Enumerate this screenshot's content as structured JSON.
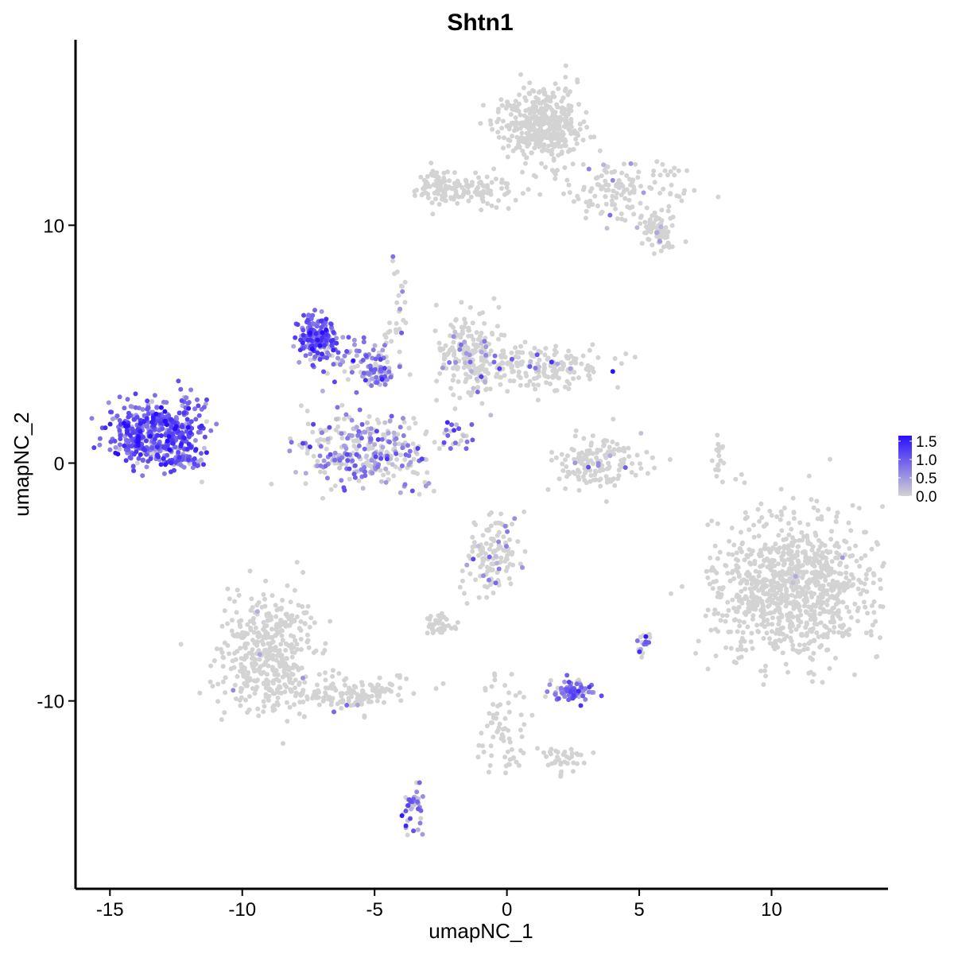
{
  "chart_data": {
    "type": "scatter",
    "title": "Shtn1",
    "xlabel": "umapNC_1",
    "ylabel": "umapNC_2",
    "xlim": [
      -16.3,
      14.4
    ],
    "ylim": [
      -17.9,
      17.8
    ],
    "x_ticks": [
      -15,
      -10,
      -5,
      0,
      5,
      10
    ],
    "x_tick_labels": [
      "-15",
      "-10",
      "-5",
      "0",
      "5",
      "10"
    ],
    "y_ticks": [
      -10,
      0,
      10
    ],
    "y_tick_labels": [
      "-10",
      "0",
      "10"
    ],
    "grid": false,
    "legend": {
      "placement": "right",
      "type": "colorbar",
      "min": 0.0,
      "max": 1.65,
      "labels": [
        "1.5",
        "1.0",
        "0.5",
        "0.0"
      ],
      "label_values": [
        1.5,
        1.0,
        0.5,
        0.0
      ],
      "low_color": "#d3d3d3",
      "high_color": "#2a0fff"
    },
    "clusters": [
      {
        "id": "c1",
        "cx": -13.2,
        "cy": 1.2,
        "sx": 0.85,
        "sy": 0.65,
        "n": 480,
        "expr_mean": 1.0,
        "expr_frac": 0.95
      },
      {
        "id": "c1b",
        "cx": -12.1,
        "cy": 0.1,
        "sx": 0.25,
        "sy": 0.15,
        "n": 25,
        "expr_mean": 0.8,
        "expr_frac": 0.9
      },
      {
        "id": "c1c",
        "cx": -12.0,
        "cy": 2.2,
        "sx": 0.4,
        "sy": 0.3,
        "n": 20,
        "expr_mean": 0.8,
        "expr_frac": 0.9
      },
      {
        "id": "c2",
        "cx": -7.2,
        "cy": 5.3,
        "sx": 0.35,
        "sy": 0.45,
        "n": 160,
        "expr_mean": 1.0,
        "expr_frac": 0.95
      },
      {
        "id": "c2b",
        "cx": -5.9,
        "cy": 4.5,
        "sx": 0.9,
        "sy": 0.45,
        "n": 80,
        "expr_mean": 0.7,
        "expr_frac": 0.75
      },
      {
        "id": "c3",
        "cx": -4.9,
        "cy": 3.7,
        "sx": 0.3,
        "sy": 0.25,
        "n": 55,
        "expr_mean": 0.7,
        "expr_frac": 0.85
      },
      {
        "id": "c4",
        "cx": -5.4,
        "cy": 0.5,
        "sx": 1.2,
        "sy": 0.75,
        "n": 320,
        "expr_mean": 0.6,
        "expr_frac": 0.55
      },
      {
        "id": "c5",
        "cx": -1.3,
        "cy": 4.5,
        "sx": 0.6,
        "sy": 0.9,
        "n": 210,
        "expr_mean": 0.5,
        "expr_frac": 0.12
      },
      {
        "id": "c5b",
        "cx": 1.3,
        "cy": 4.1,
        "sx": 1.2,
        "sy": 0.45,
        "n": 170,
        "expr_mean": 0.5,
        "expr_frac": 0.08
      },
      {
        "id": "c6",
        "cx": 1.3,
        "cy": 14.2,
        "sx": 0.8,
        "sy": 0.75,
        "n": 420,
        "expr_mean": 0.5,
        "expr_frac": 0.0
      },
      {
        "id": "c6b",
        "cx": -1.5,
        "cy": 11.5,
        "sx": 0.9,
        "sy": 0.35,
        "n": 120,
        "expr_mean": 0.5,
        "expr_frac": 0.0
      },
      {
        "id": "c6c",
        "cx": 4.3,
        "cy": 11.5,
        "sx": 1.2,
        "sy": 0.7,
        "n": 140,
        "expr_mean": 0.5,
        "expr_frac": 0.05
      },
      {
        "id": "c6d",
        "cx": 5.7,
        "cy": 9.7,
        "sx": 0.35,
        "sy": 0.35,
        "n": 80,
        "expr_mean": 0.5,
        "expr_frac": 0.05
      },
      {
        "id": "c7",
        "cx": 10.8,
        "cy": -5.3,
        "sx": 1.55,
        "sy": 1.5,
        "n": 950,
        "expr_mean": 0.5,
        "expr_frac": 0.004
      },
      {
        "id": "c8",
        "cx": -9.0,
        "cy": -8.0,
        "sx": 0.9,
        "sy": 1.3,
        "n": 430,
        "expr_mean": 0.5,
        "expr_frac": 0.01
      },
      {
        "id": "c8b",
        "cx": -5.9,
        "cy": -9.7,
        "sx": 1.1,
        "sy": 0.35,
        "n": 140,
        "expr_mean": 0.5,
        "expr_frac": 0.02
      },
      {
        "id": "c9",
        "cx": 2.4,
        "cy": -9.6,
        "sx": 0.4,
        "sy": 0.22,
        "n": 90,
        "expr_mean": 0.8,
        "expr_frac": 0.8
      },
      {
        "id": "c10",
        "cx": 3.5,
        "cy": 0.0,
        "sx": 0.8,
        "sy": 0.6,
        "n": 150,
        "expr_mean": 0.5,
        "expr_frac": 0.05
      },
      {
        "id": "c11",
        "cx": -0.5,
        "cy": -4.0,
        "sx": 0.55,
        "sy": 0.8,
        "n": 130,
        "expr_mean": 0.6,
        "expr_frac": 0.12
      },
      {
        "id": "c12",
        "cx": -3.5,
        "cy": -14.5,
        "sx": 0.2,
        "sy": 0.5,
        "n": 40,
        "expr_mean": 0.7,
        "expr_frac": 0.7
      },
      {
        "id": "c13",
        "cx": -0.1,
        "cy": -11.2,
        "sx": 0.4,
        "sy": 1.1,
        "n": 70,
        "expr_mean": 0.5,
        "expr_frac": 0.0
      },
      {
        "id": "c13b",
        "cx": 2.2,
        "cy": -12.4,
        "sx": 0.4,
        "sy": 0.3,
        "n": 35,
        "expr_mean": 0.5,
        "expr_frac": 0.0
      },
      {
        "id": "c14",
        "cx": -2.6,
        "cy": -6.9,
        "sx": 0.3,
        "sy": 0.2,
        "n": 40,
        "expr_mean": 0.5,
        "expr_frac": 0.0
      },
      {
        "id": "c15",
        "cx": -4.2,
        "cy": 6.3,
        "sx": 0.25,
        "sy": 1.0,
        "n": 30,
        "expr_mean": 0.6,
        "expr_frac": 0.25
      },
      {
        "id": "c16",
        "cx": -1.9,
        "cy": 1.1,
        "sx": 0.3,
        "sy": 0.35,
        "n": 22,
        "expr_mean": 0.9,
        "expr_frac": 0.6
      },
      {
        "id": "c17",
        "cx": 8.0,
        "cy": 0.2,
        "sx": 0.12,
        "sy": 0.5,
        "n": 20,
        "expr_mean": 0.5,
        "expr_frac": 0.0
      },
      {
        "id": "c18",
        "cx": 5.1,
        "cy": -7.5,
        "sx": 0.15,
        "sy": 0.3,
        "n": 18,
        "expr_mean": 0.7,
        "expr_frac": 0.5
      },
      {
        "id": "c19",
        "cx": -2.7,
        "cy": 11.6,
        "sx": 0.3,
        "sy": 0.35,
        "n": 40,
        "expr_mean": 0.5,
        "expr_frac": 0.0
      }
    ]
  },
  "colors": {
    "axis": "#000000",
    "background": "#ffffff"
  }
}
